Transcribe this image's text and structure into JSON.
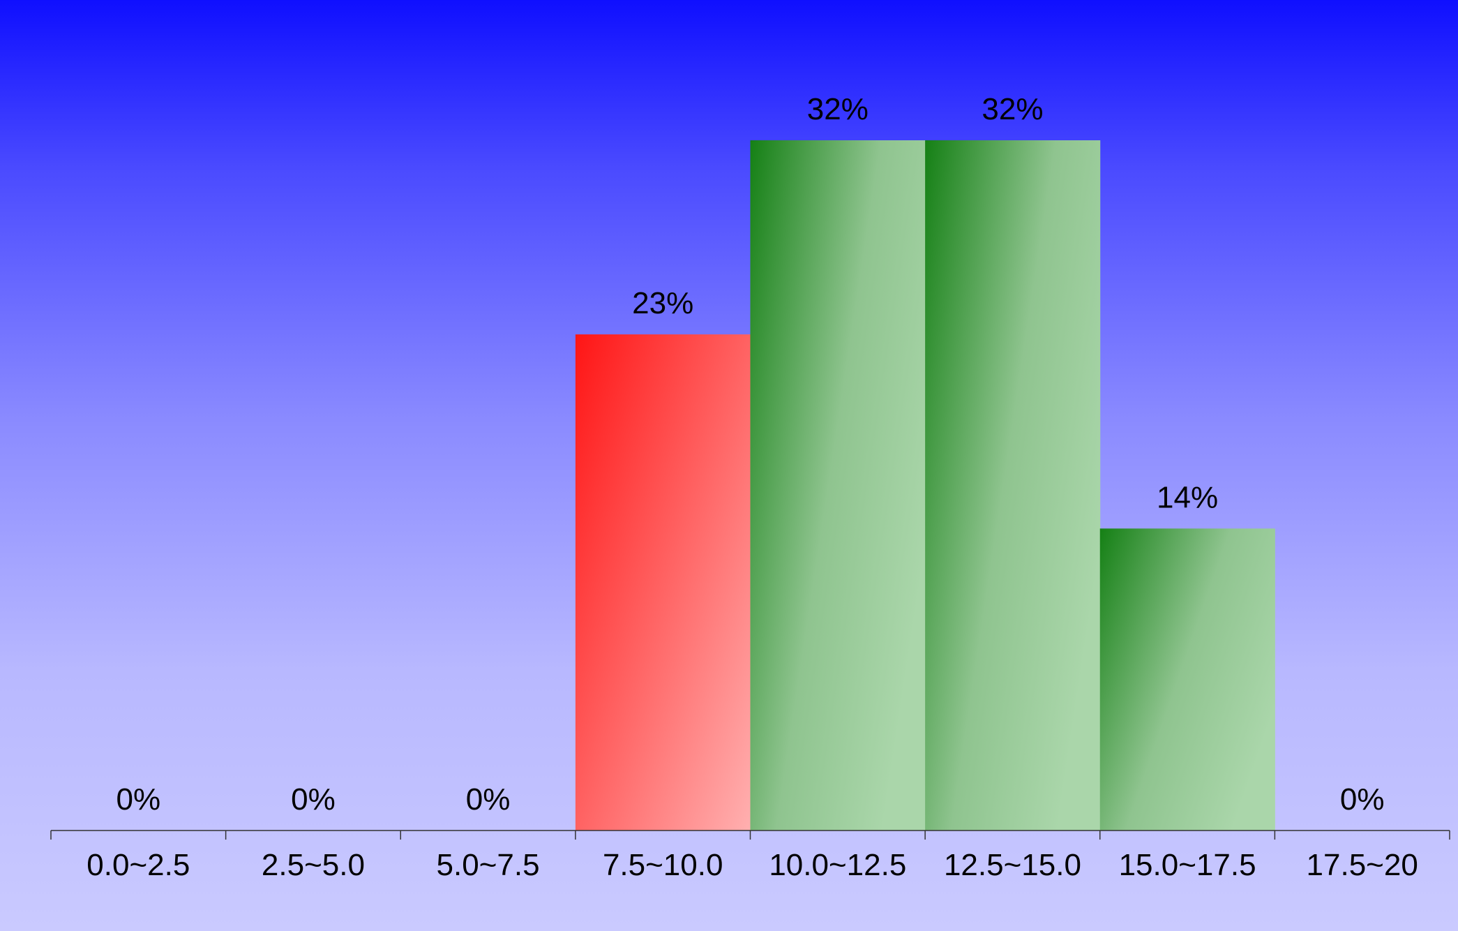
{
  "chart_data": {
    "type": "bar",
    "title": "",
    "xlabel": "",
    "ylabel": "",
    "categories": [
      "0.0~2.5",
      "2.5~5.0",
      "5.0~7.5",
      "7.5~10.0",
      "10.0~12.5",
      "12.5~15.0",
      "15.0~17.5",
      "17.5~20"
    ],
    "values": [
      0,
      0,
      0,
      23,
      32,
      32,
      14,
      0
    ],
    "value_labels": [
      "0%",
      "0%",
      "0%",
      "23%",
      "32%",
      "32%",
      "14%",
      "0%"
    ],
    "bar_colors": [
      "#ff1a1a",
      "#ff1a1a",
      "#ff1a1a",
      "#ff1a1a",
      "#188018",
      "#188018",
      "#188018",
      "#188018"
    ],
    "ylim": [
      0,
      32
    ],
    "grid": false,
    "legend": "none",
    "background": {
      "top": "#0f0fff",
      "bottom": "#cacaff"
    }
  }
}
